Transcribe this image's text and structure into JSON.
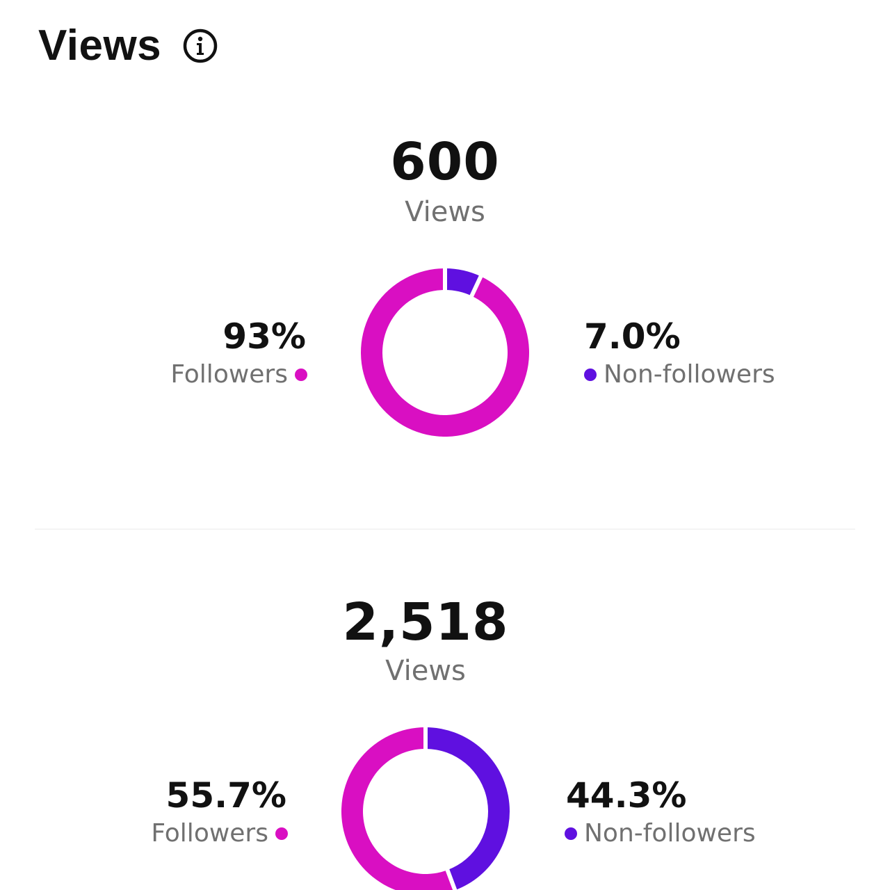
{
  "header": {
    "title": "Views",
    "info_icon": "info-circle-icon"
  },
  "colors": {
    "followers": "#d90fc2",
    "non_followers": "#5f10e0"
  },
  "sections": [
    {
      "total": "600",
      "total_label": "Views",
      "followers_pct": "93%",
      "followers_label": "Followers",
      "non_followers_pct": "7.0%",
      "non_followers_label": "Non-followers"
    },
    {
      "total": "2,518",
      "total_label": "Views",
      "followers_pct": "55.7%",
      "followers_label": "Followers",
      "non_followers_pct": "44.3%",
      "non_followers_label": "Non-followers"
    }
  ],
  "chart_data": [
    {
      "type": "pie",
      "categories": [
        "Followers",
        "Non-followers"
      ],
      "values": [
        93,
        7.0
      ]
    },
    {
      "type": "pie",
      "categories": [
        "Followers",
        "Non-followers"
      ],
      "values": [
        55.7,
        44.3
      ]
    }
  ]
}
